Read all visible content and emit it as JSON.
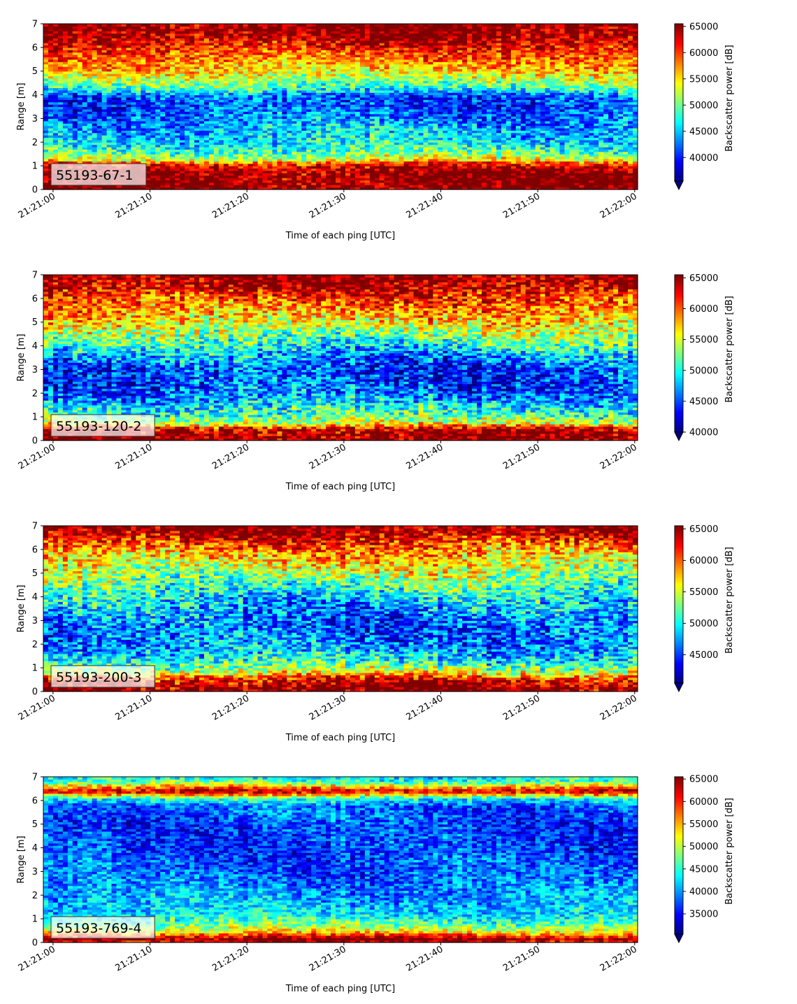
{
  "figure": {
    "background": "#ffffff"
  },
  "chart_data": [
    {
      "type": "heatmap",
      "label": "55193-67-1",
      "xlabel": "Time of each ping [UTC]",
      "ylabel": "Range [m]",
      "colorbar_label": "Backscatter power [dB]",
      "colorbar_ticks": [
        40000,
        45000,
        50000,
        55000,
        60000,
        65000
      ],
      "clim": [
        35500,
        65500
      ],
      "x_ticks": [
        "21:21:00",
        "21:21:10",
        "21:21:20",
        "21:21:30",
        "21:21:40",
        "21:21:50",
        "21:22:00"
      ],
      "x_range_s": [
        -1,
        60.3
      ],
      "y_ticks": [
        0,
        1,
        2,
        3,
        4,
        5,
        6,
        7
      ],
      "ylim": [
        0,
        7
      ],
      "range_profile_dB": [
        [
          0.0,
          65500
        ],
        [
          0.25,
          65500
        ],
        [
          0.8,
          65000
        ],
        [
          1.1,
          61000
        ],
        [
          1.25,
          54000
        ],
        [
          1.6,
          49000
        ],
        [
          2.0,
          46000
        ],
        [
          2.5,
          45000
        ],
        [
          3.0,
          43000
        ],
        [
          3.5,
          41000
        ],
        [
          4.0,
          42000
        ],
        [
          4.2,
          47000
        ],
        [
          4.6,
          51000
        ],
        [
          5.0,
          55000
        ],
        [
          5.5,
          58000
        ],
        [
          6.0,
          61000
        ],
        [
          6.4,
          64000
        ],
        [
          6.8,
          65500
        ],
        [
          7.0,
          65500
        ]
      ]
    },
    {
      "type": "heatmap",
      "label": "55193-120-2",
      "xlabel": "Time of each ping [UTC]",
      "ylabel": "Range [m]",
      "colorbar_label": "Backscatter power [dB]",
      "colorbar_ticks": [
        40000,
        45000,
        50000,
        55000,
        60000,
        65000
      ],
      "clim": [
        40000,
        65500
      ],
      "x_ticks": [
        "21:21:00",
        "21:21:10",
        "21:21:20",
        "21:21:30",
        "21:21:40",
        "21:21:50",
        "21:22:00"
      ],
      "x_range_s": [
        -1,
        60.3
      ],
      "y_ticks": [
        0,
        1,
        2,
        3,
        4,
        5,
        6,
        7
      ],
      "ylim": [
        0,
        7
      ],
      "range_profile_dB": [
        [
          0.0,
          65500
        ],
        [
          0.2,
          65500
        ],
        [
          0.5,
          64000
        ],
        [
          0.7,
          56000
        ],
        [
          1.0,
          52000
        ],
        [
          1.5,
          49000
        ],
        [
          2.0,
          46000
        ],
        [
          2.5,
          45000
        ],
        [
          3.0,
          44500
        ],
        [
          3.5,
          47000
        ],
        [
          4.0,
          50000
        ],
        [
          4.5,
          53000
        ],
        [
          5.0,
          56000
        ],
        [
          5.5,
          58500
        ],
        [
          6.0,
          61000
        ],
        [
          6.4,
          63500
        ],
        [
          6.8,
          65500
        ],
        [
          7.0,
          65500
        ]
      ]
    },
    {
      "type": "heatmap",
      "label": "55193-200-3",
      "xlabel": "Time of each ping [UTC]",
      "ylabel": "Range [m]",
      "colorbar_label": "Backscatter power [dB]",
      "colorbar_ticks": [
        45000,
        50000,
        55000,
        60000,
        65000
      ],
      "clim": [
        40500,
        65500
      ],
      "x_ticks": [
        "21:21:00",
        "21:21:10",
        "21:21:20",
        "21:21:30",
        "21:21:40",
        "21:21:50",
        "21:22:00"
      ],
      "x_range_s": [
        -1,
        60.3
      ],
      "y_ticks": [
        0,
        1,
        2,
        3,
        4,
        5,
        6,
        7
      ],
      "ylim": [
        0,
        7
      ],
      "range_profile_dB": [
        [
          0.0,
          65500
        ],
        [
          0.2,
          65500
        ],
        [
          0.5,
          63000
        ],
        [
          0.8,
          56000
        ],
        [
          1.2,
          51000
        ],
        [
          1.6,
          48500
        ],
        [
          2.0,
          47000
        ],
        [
          2.5,
          46000
        ],
        [
          3.0,
          46000
        ],
        [
          3.5,
          47500
        ],
        [
          4.0,
          49000
        ],
        [
          4.5,
          51500
        ],
        [
          5.0,
          54000
        ],
        [
          5.5,
          56500
        ],
        [
          6.0,
          59000
        ],
        [
          6.4,
          62000
        ],
        [
          6.8,
          65000
        ],
        [
          7.0,
          65500
        ]
      ]
    },
    {
      "type": "heatmap",
      "label": "55193-769-4",
      "xlabel": "Time of each ping [UTC]",
      "ylabel": "Range [m]",
      "colorbar_label": "Backscatter power [dB]",
      "colorbar_ticks": [
        35000,
        40000,
        45000,
        50000,
        55000,
        60000,
        65000
      ],
      "clim": [
        30500,
        65500
      ],
      "x_ticks": [
        "21:21:00",
        "21:21:10",
        "21:21:20",
        "21:21:30",
        "21:21:40",
        "21:21:50",
        "21:22:00"
      ],
      "x_range_s": [
        -1,
        60.3
      ],
      "y_ticks": [
        0,
        1,
        2,
        3,
        4,
        5,
        6,
        7
      ],
      "ylim": [
        0,
        7
      ],
      "range_profile_dB": [
        [
          0.0,
          62000
        ],
        [
          0.15,
          65500
        ],
        [
          0.3,
          60000
        ],
        [
          0.5,
          52000
        ],
        [
          0.8,
          47000
        ],
        [
          1.2,
          43000
        ],
        [
          1.8,
          41000
        ],
        [
          2.5,
          39000
        ],
        [
          3.0,
          38000
        ],
        [
          4.0,
          37000
        ],
        [
          5.0,
          37000
        ],
        [
          5.8,
          38500
        ],
        [
          6.1,
          45000
        ],
        [
          6.4,
          64000
        ],
        [
          6.6,
          55000
        ],
        [
          6.8,
          46000
        ],
        [
          7.0,
          43000
        ]
      ]
    }
  ]
}
